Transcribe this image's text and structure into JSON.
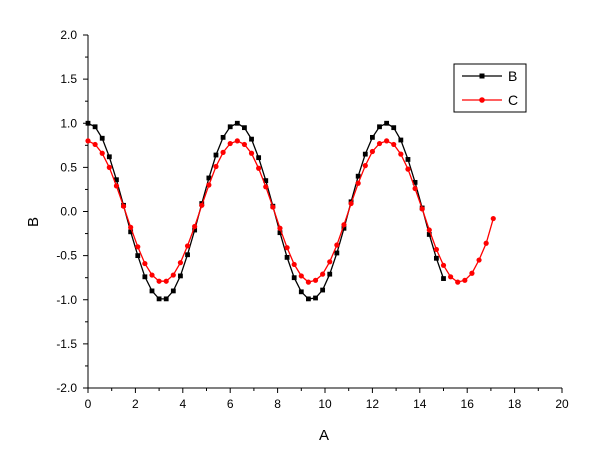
{
  "chart_data": {
    "type": "line",
    "title": "",
    "xlabel": "A",
    "ylabel": "B",
    "xlim": [
      0,
      20
    ],
    "ylim": [
      -2.0,
      2.0
    ],
    "x_ticks": [
      0,
      2,
      4,
      6,
      8,
      10,
      12,
      14,
      16,
      18,
      20
    ],
    "x_tick_labels": [
      "0",
      "2",
      "4",
      "6",
      "8",
      "10",
      "12",
      "14",
      "16",
      "18",
      "20"
    ],
    "y_ticks": [
      -2.0,
      -1.5,
      -1.0,
      -0.5,
      0.0,
      0.5,
      1.0,
      1.5,
      2.0
    ],
    "y_tick_labels": [
      "-2.0",
      "-1.5",
      "-1.0",
      "-0.5",
      "0.0",
      "0.5",
      "1.0",
      "1.5",
      "2.0"
    ],
    "grid": false,
    "legend_position": "top-right",
    "series": [
      {
        "name": "B",
        "color": "#000000",
        "marker": "square",
        "x": [
          0,
          0.3,
          0.6,
          0.9,
          1.2,
          1.5,
          1.8,
          2.1,
          2.4,
          2.7,
          3.0,
          3.3,
          3.6,
          3.9,
          4.2,
          4.5,
          4.8,
          5.1,
          5.4,
          5.7,
          6.0,
          6.3,
          6.6,
          6.9,
          7.2,
          7.5,
          7.8,
          8.1,
          8.4,
          8.7,
          9.0,
          9.3,
          9.6,
          9.9,
          10.2,
          10.5,
          10.8,
          11.1,
          11.4,
          11.7,
          12.0,
          12.3,
          12.6,
          12.9,
          13.2,
          13.5,
          13.8,
          14.1,
          14.4,
          14.7,
          15.0
        ],
        "y": [
          1.0,
          0.96,
          0.83,
          0.62,
          0.36,
          0.07,
          -0.23,
          -0.5,
          -0.74,
          -0.9,
          -0.99,
          -0.99,
          -0.9,
          -0.73,
          -0.49,
          -0.21,
          0.09,
          0.38,
          0.64,
          0.84,
          0.96,
          1.0,
          0.95,
          0.82,
          0.61,
          0.35,
          0.06,
          -0.24,
          -0.52,
          -0.75,
          -0.91,
          -0.99,
          -0.98,
          -0.89,
          -0.71,
          -0.47,
          -0.19,
          0.11,
          0.4,
          0.65,
          0.84,
          0.96,
          1.0,
          0.95,
          0.81,
          0.59,
          0.33,
          0.04,
          -0.26,
          -0.53,
          -0.76
        ]
      },
      {
        "name": "C",
        "color": "#ff0000",
        "marker": "circle",
        "x": [
          0,
          0.3,
          0.6,
          0.9,
          1.2,
          1.5,
          1.8,
          2.1,
          2.4,
          2.7,
          3.0,
          3.3,
          3.6,
          3.9,
          4.2,
          4.5,
          4.8,
          5.1,
          5.4,
          5.7,
          6.0,
          6.3,
          6.6,
          6.9,
          7.2,
          7.5,
          7.8,
          8.1,
          8.4,
          8.7,
          9.0,
          9.3,
          9.6,
          9.9,
          10.2,
          10.5,
          10.8,
          11.1,
          11.4,
          11.7,
          12.0,
          12.3,
          12.6,
          12.9,
          13.2,
          13.5,
          13.8,
          14.1,
          14.4,
          14.7,
          15.0,
          15.3,
          15.6,
          15.9,
          16.2,
          16.5,
          16.8,
          17.1
        ],
        "y": [
          0.8,
          0.76,
          0.66,
          0.5,
          0.29,
          0.06,
          -0.18,
          -0.4,
          -0.59,
          -0.72,
          -0.79,
          -0.79,
          -0.72,
          -0.58,
          -0.39,
          -0.17,
          0.07,
          0.3,
          0.51,
          0.67,
          0.77,
          0.8,
          0.76,
          0.66,
          0.49,
          0.28,
          0.05,
          -0.19,
          -0.41,
          -0.6,
          -0.73,
          -0.8,
          -0.78,
          -0.71,
          -0.57,
          -0.38,
          -0.15,
          0.09,
          0.32,
          0.52,
          0.68,
          0.77,
          0.8,
          0.76,
          0.65,
          0.48,
          0.26,
          0.03,
          -0.21,
          -0.43,
          -0.61,
          -0.74,
          -0.8,
          -0.78,
          -0.7,
          -0.55,
          -0.36,
          -0.08
        ]
      }
    ]
  }
}
